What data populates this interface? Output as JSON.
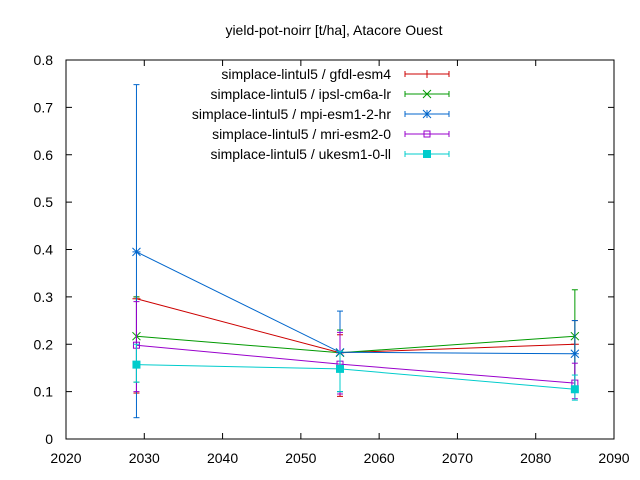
{
  "chart_data": {
    "type": "line",
    "title": "yield-pot-noirr [t/ha], Atacore Ouest",
    "xlabel": "",
    "ylabel": "",
    "xlim": [
      2020,
      2090
    ],
    "ylim": [
      0,
      0.8
    ],
    "xticks": [
      2020,
      2030,
      2040,
      2050,
      2060,
      2070,
      2080,
      2090
    ],
    "yticks": [
      0,
      0.1,
      0.2,
      0.3,
      0.4,
      0.5,
      0.6,
      0.7,
      0.8
    ],
    "grid": false,
    "legend_position": "top-right",
    "series": [
      {
        "name": "simplace-lintul5 / gfdl-esm4",
        "color": "#cc0000",
        "marker": "plus",
        "x": [
          2029,
          2055,
          2085
        ],
        "y": [
          0.296,
          0.182,
          0.2
        ],
        "err_low": [
          0.097,
          0.09,
          0.11
        ],
        "err_high": [
          0.3,
          0.22,
          0.25
        ]
      },
      {
        "name": "simplace-lintul5 / ipsl-cm6a-lr",
        "color": "#009900",
        "marker": "x",
        "x": [
          2029,
          2055,
          2085
        ],
        "y": [
          0.217,
          0.182,
          0.217
        ],
        "err_low": [
          0.12,
          0.1,
          0.11
        ],
        "err_high": [
          0.3,
          0.23,
          0.315
        ]
      },
      {
        "name": "simplace-lintul5 / mpi-esm1-2-hr",
        "color": "#0066cc",
        "marker": "star",
        "x": [
          2029,
          2055,
          2085
        ],
        "y": [
          0.395,
          0.183,
          0.18
        ],
        "err_low": [
          0.045,
          0.1,
          0.11
        ],
        "err_high": [
          0.748,
          0.27,
          0.25
        ]
      },
      {
        "name": "simplace-lintul5 / mri-esm2-0",
        "color": "#9900cc",
        "marker": "square-open",
        "x": [
          2029,
          2055,
          2085
        ],
        "y": [
          0.198,
          0.158,
          0.118
        ],
        "err_low": [
          0.1,
          0.095,
          0.085
        ],
        "err_high": [
          0.29,
          0.225,
          0.16
        ]
      },
      {
        "name": "simplace-lintul5 / ukesm1-0-ll",
        "color": "#00cccc",
        "marker": "square-filled",
        "x": [
          2029,
          2055,
          2085
        ],
        "y": [
          0.157,
          0.148,
          0.105
        ],
        "err_low": [
          0.12,
          0.1,
          0.082
        ],
        "err_high": [
          0.2,
          0.185,
          0.135
        ]
      }
    ]
  }
}
